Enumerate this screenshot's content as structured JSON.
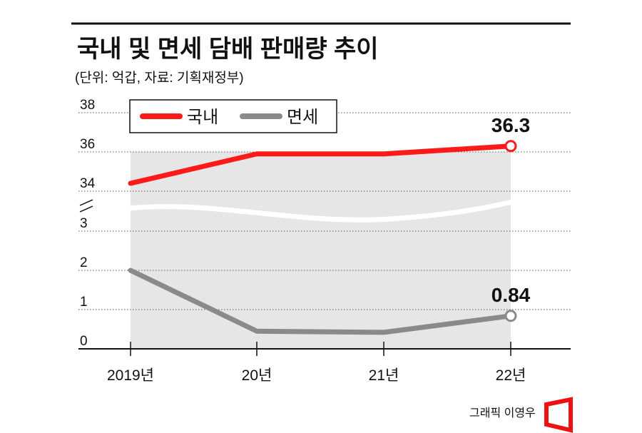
{
  "chart_data": {
    "type": "line",
    "title": "국내 및 면세 담배 판매량 추이",
    "subtitle": "(단위: 억갑, 자료: 기획재정부)",
    "categories": [
      "2019년",
      "20년",
      "21년",
      "22년"
    ],
    "series": [
      {
        "name": "국내",
        "color": "#ff1a1a",
        "values": [
          34.4,
          35.9,
          35.9,
          36.3
        ],
        "end_label": "36.3"
      },
      {
        "name": "면세",
        "color": "#8a8a8a",
        "values": [
          2.0,
          0.45,
          0.42,
          0.84
        ],
        "end_label": "0.84"
      }
    ],
    "y_axis_upper": {
      "ticks": [
        "38",
        "36",
        "34"
      ],
      "range": [
        33.2,
        38
      ]
    },
    "y_axis_lower": {
      "ticks": [
        "3",
        "2",
        "1",
        "0"
      ],
      "range": [
        0,
        3.6
      ]
    },
    "axis_break": true,
    "grid": true,
    "legend_position": "top-left"
  },
  "credit": "그래픽 이영우"
}
